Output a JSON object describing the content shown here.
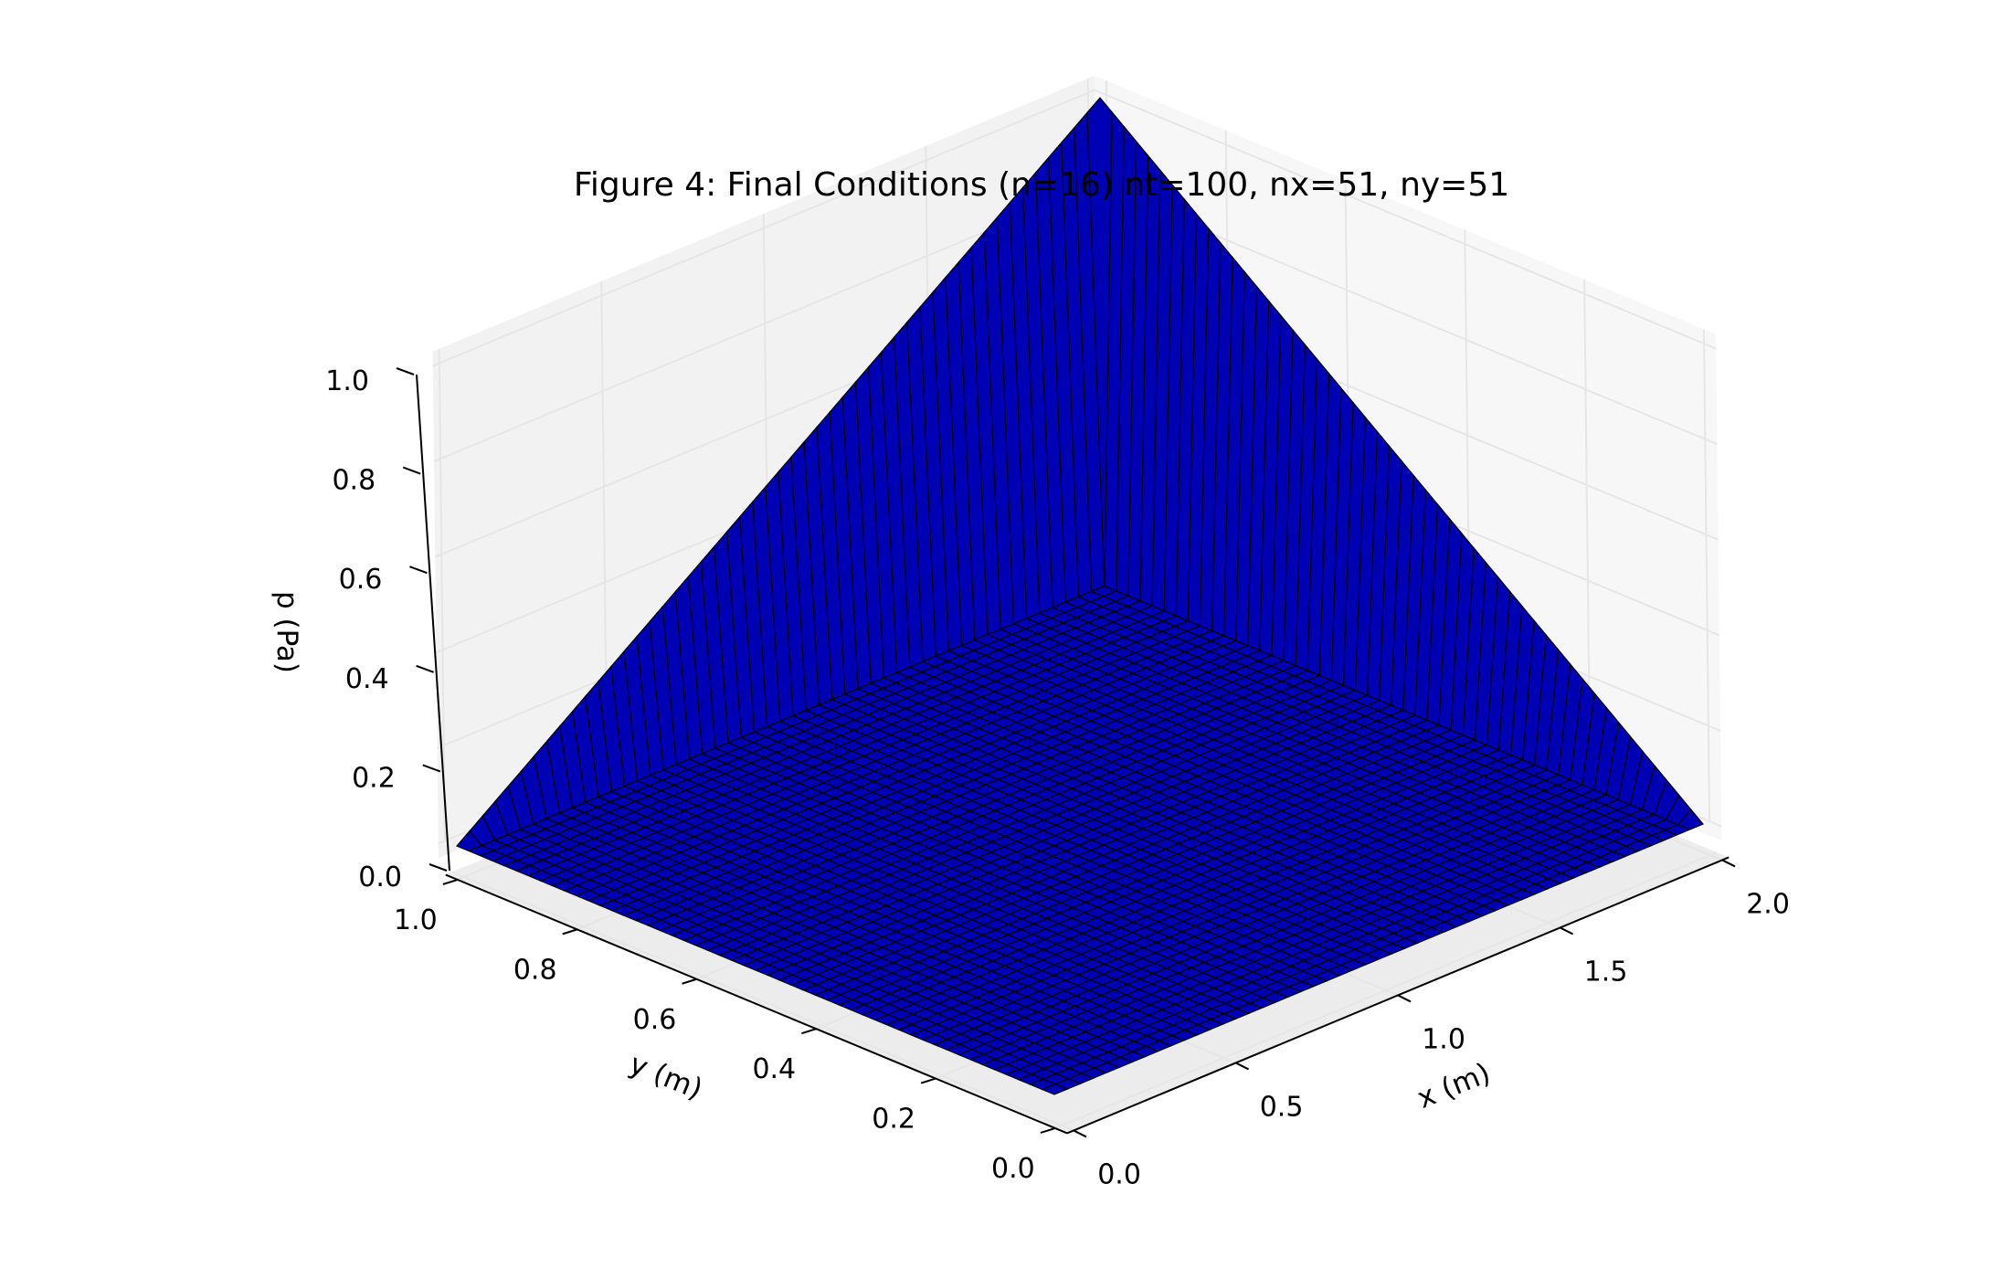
{
  "chart_data": {
    "type": "surface",
    "title": "Figure 4: Final Conditions (n=16) nt=100, nx=51, ny=51",
    "xlabel": "x (m)",
    "ylabel": "y (m)",
    "zlabel": "p (Pa)",
    "xlim": [
      0.0,
      2.0
    ],
    "ylim": [
      0.0,
      1.0
    ],
    "zlim": [
      0.0,
      1.0
    ],
    "x_ticks": [
      "0.0",
      "0.5",
      "1.0",
      "1.5",
      "2.0"
    ],
    "y_ticks": [
      "0.0",
      "0.2",
      "0.4",
      "0.6",
      "0.8",
      "1.0"
    ],
    "z_ticks": [
      "0.0",
      "0.2",
      "0.4",
      "0.6",
      "0.8",
      "1.0"
    ],
    "grid": true,
    "nx": 51,
    "ny": 51,
    "surface": {
      "boundary_x0": "p = 0",
      "boundary_x2": "p = y",
      "boundary_y1": "p = x / 2 (rises with x)",
      "interior": 0.0
    },
    "colors": {
      "surface": "#0000b4",
      "edge": "#000000",
      "pane": "#f2f2f2",
      "grid": "#e6e6e6"
    }
  }
}
